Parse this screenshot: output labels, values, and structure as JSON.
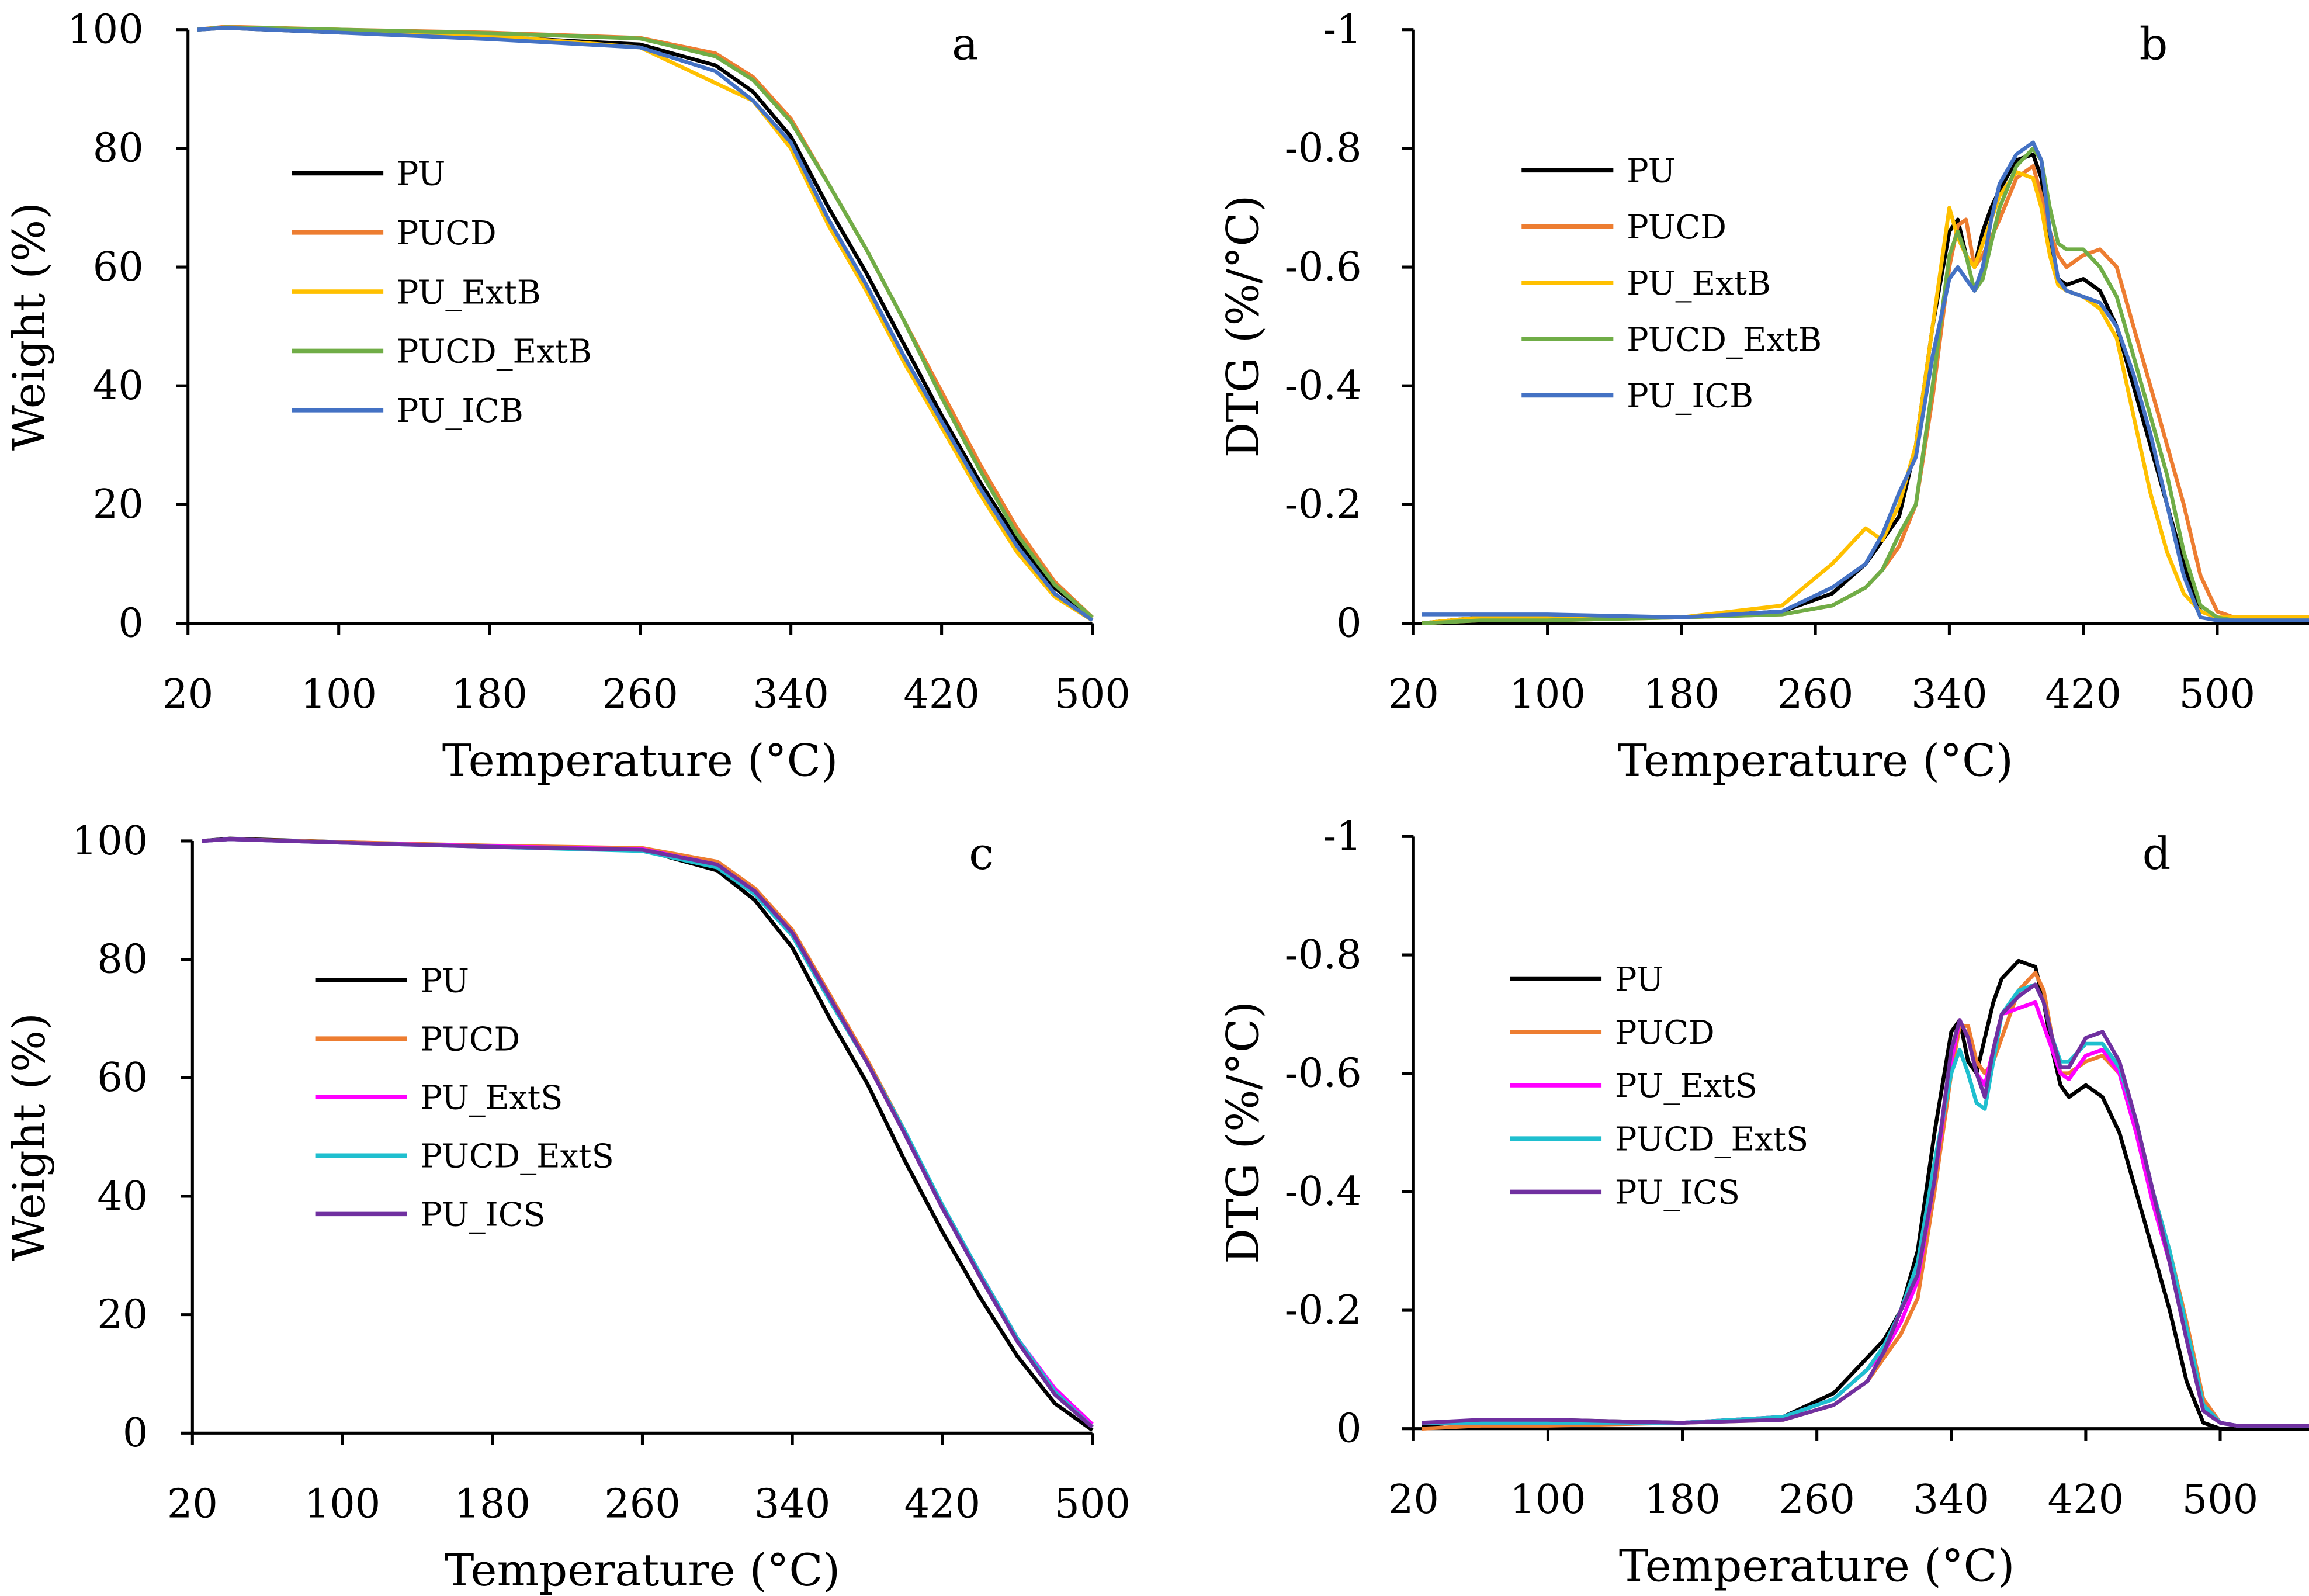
{
  "chart_data": [
    {
      "panel": "a",
      "type": "line",
      "xlabel": "Temperature (°C)",
      "ylabel": "Weight (%)",
      "xlim": [
        20,
        500
      ],
      "ylim": [
        0,
        100
      ],
      "xticks": [
        {
          "v": 20,
          "t": "20"
        },
        {
          "v": 100,
          "t": "100"
        },
        {
          "v": 180,
          "t": "180"
        },
        {
          "v": 260,
          "t": "260"
        },
        {
          "v": 340,
          "t": "340"
        },
        {
          "v": 420,
          "t": "420"
        },
        {
          "v": 500,
          "t": "500"
        }
      ],
      "yticks": [
        {
          "v": 0,
          "t": "0"
        },
        {
          "v": 20,
          "t": "20"
        },
        {
          "v": 40,
          "t": "40"
        },
        {
          "v": 60,
          "t": "60"
        },
        {
          "v": 80,
          "t": "80"
        },
        {
          "v": 100,
          "t": "100"
        }
      ],
      "legend_position": "center-left",
      "grid": false,
      "x": [
        25,
        40,
        100,
        180,
        260,
        300,
        320,
        340,
        360,
        380,
        400,
        420,
        440,
        460,
        480,
        500
      ],
      "series": [
        {
          "name": "PU",
          "color": "#000000",
          "values": [
            100,
            100.3,
            99.5,
            98.8,
            97.5,
            94,
            89.5,
            82,
            70,
            59,
            47,
            35,
            24,
            14,
            6,
            1
          ]
        },
        {
          "name": "PUCD",
          "color": "#ED7D31",
          "values": [
            100,
            100.5,
            100,
            99.5,
            98.6,
            96,
            92,
            85,
            74,
            63,
            51,
            39,
            27,
            16,
            7,
            1
          ]
        },
        {
          "name": "PU_ExtB",
          "color": "#FFC000",
          "values": [
            100,
            100.4,
            100,
            99,
            97,
            91,
            88,
            80,
            67,
            56,
            44,
            33,
            22,
            12,
            4.5,
            0.5
          ]
        },
        {
          "name": "PUCD_ExtB",
          "color": "#70AD47",
          "values": [
            100,
            100.4,
            100,
            99.4,
            98.5,
            95.5,
            91.5,
            84.5,
            74,
            63,
            51,
            38,
            26,
            15,
            6.5,
            1
          ]
        },
        {
          "name": "PU_ICB",
          "color": "#4472C4",
          "values": [
            100,
            100.3,
            99.5,
            98.4,
            97,
            93,
            88,
            81,
            68,
            57,
            45,
            34,
            23,
            13,
            5,
            0.5
          ]
        }
      ]
    },
    {
      "panel": "b",
      "type": "line",
      "xlabel": "Temperature (°C)",
      "ylabel": "DTG (%/°C)",
      "xlim": [
        20,
        555
      ],
      "ylim": [
        0,
        -1
      ],
      "xticks": [
        {
          "v": 20,
          "t": "20"
        },
        {
          "v": 100,
          "t": "100"
        },
        {
          "v": 180,
          "t": "180"
        },
        {
          "v": 260,
          "t": "260"
        },
        {
          "v": 340,
          "t": "340"
        },
        {
          "v": 420,
          "t": "420"
        },
        {
          "v": 500,
          "t": "500"
        }
      ],
      "yticks": [
        {
          "v": 0,
          "t": "0"
        },
        {
          "v": -0.2,
          "t": "-0.2"
        },
        {
          "v": -0.4,
          "t": "-0.4"
        },
        {
          "v": -0.6,
          "t": "-0.6"
        },
        {
          "v": -0.8,
          "t": "-0.8"
        },
        {
          "v": -1,
          "t": "-1"
        }
      ],
      "legend_position": "top-left",
      "grid": false,
      "x": [
        25,
        60,
        100,
        180,
        240,
        270,
        290,
        300,
        310,
        320,
        330,
        340,
        345,
        350,
        355,
        360,
        365,
        370,
        380,
        390,
        395,
        400,
        405,
        410,
        420,
        430,
        440,
        450,
        460,
        470,
        480,
        490,
        500,
        510,
        555
      ],
      "series": [
        {
          "name": "PU",
          "color": "#000000",
          "values": [
            0,
            -0.01,
            -0.01,
            -0.01,
            -0.02,
            -0.05,
            -0.1,
            -0.14,
            -0.18,
            -0.3,
            -0.5,
            -0.66,
            -0.68,
            -0.62,
            -0.6,
            -0.66,
            -0.7,
            -0.73,
            -0.78,
            -0.79,
            -0.75,
            -0.65,
            -0.58,
            -0.57,
            -0.58,
            -0.56,
            -0.5,
            -0.4,
            -0.3,
            -0.2,
            -0.1,
            -0.02,
            -0.01,
            0,
            0
          ]
        },
        {
          "name": "PUCD",
          "color": "#ED7D31",
          "values": [
            0,
            -0.005,
            -0.005,
            -0.01,
            -0.015,
            -0.03,
            -0.06,
            -0.09,
            -0.13,
            -0.2,
            -0.38,
            -0.6,
            -0.67,
            -0.68,
            -0.6,
            -0.62,
            -0.65,
            -0.68,
            -0.75,
            -0.77,
            -0.72,
            -0.66,
            -0.62,
            -0.6,
            -0.62,
            -0.63,
            -0.6,
            -0.5,
            -0.4,
            -0.3,
            -0.2,
            -0.08,
            -0.02,
            -0.01,
            -0.01
          ]
        },
        {
          "name": "PU_ExtB",
          "color": "#FFC000",
          "values": [
            0,
            -0.01,
            -0.01,
            -0.01,
            -0.03,
            -0.1,
            -0.16,
            -0.14,
            -0.2,
            -0.3,
            -0.5,
            -0.7,
            -0.65,
            -0.62,
            -0.6,
            -0.64,
            -0.68,
            -0.72,
            -0.76,
            -0.75,
            -0.7,
            -0.62,
            -0.57,
            -0.56,
            -0.55,
            -0.53,
            -0.48,
            -0.35,
            -0.22,
            -0.12,
            -0.05,
            -0.02,
            -0.01,
            -0.01,
            -0.01
          ]
        },
        {
          "name": "PUCD_ExtB",
          "color": "#70AD47",
          "values": [
            0,
            -0.005,
            -0.005,
            -0.01,
            -0.015,
            -0.03,
            -0.06,
            -0.09,
            -0.15,
            -0.2,
            -0.4,
            -0.62,
            -0.66,
            -0.62,
            -0.56,
            -0.58,
            -0.64,
            -0.7,
            -0.77,
            -0.8,
            -0.78,
            -0.7,
            -0.64,
            -0.63,
            -0.63,
            -0.6,
            -0.55,
            -0.45,
            -0.35,
            -0.25,
            -0.12,
            -0.03,
            -0.01,
            -0.005,
            -0.005
          ]
        },
        {
          "name": "PU_ICB",
          "color": "#4472C4",
          "values": [
            -0.015,
            -0.015,
            -0.015,
            -0.01,
            -0.02,
            -0.06,
            -0.1,
            -0.15,
            -0.22,
            -0.28,
            -0.45,
            -0.58,
            -0.6,
            -0.58,
            -0.56,
            -0.6,
            -0.68,
            -0.74,
            -0.79,
            -0.81,
            -0.78,
            -0.66,
            -0.58,
            -0.56,
            -0.55,
            -0.54,
            -0.5,
            -0.42,
            -0.32,
            -0.2,
            -0.08,
            -0.01,
            -0.005,
            -0.005,
            -0.005
          ]
        }
      ]
    },
    {
      "panel": "c",
      "type": "line",
      "xlabel": "Temperature (°C)",
      "ylabel": "Weight (%)",
      "xlim": [
        20,
        500
      ],
      "ylim": [
        0,
        100
      ],
      "xticks": [
        {
          "v": 20,
          "t": "20"
        },
        {
          "v": 100,
          "t": "100"
        },
        {
          "v": 180,
          "t": "180"
        },
        {
          "v": 260,
          "t": "260"
        },
        {
          "v": 340,
          "t": "340"
        },
        {
          "v": 420,
          "t": "420"
        },
        {
          "v": 500,
          "t": "500"
        }
      ],
      "yticks": [
        {
          "v": 0,
          "t": "0"
        },
        {
          "v": 20,
          "t": "20"
        },
        {
          "v": 40,
          "t": "40"
        },
        {
          "v": 60,
          "t": "60"
        },
        {
          "v": 80,
          "t": "80"
        },
        {
          "v": 100,
          "t": "100"
        }
      ],
      "legend_position": "center-left",
      "grid": false,
      "x": [
        25,
        40,
        100,
        180,
        260,
        300,
        320,
        340,
        360,
        380,
        400,
        420,
        440,
        460,
        480,
        500
      ],
      "series": [
        {
          "name": "PU",
          "color": "#000000",
          "values": [
            100,
            100.4,
            99.8,
            99,
            98.5,
            95,
            90,
            82,
            70,
            59,
            46,
            34,
            23,
            13,
            5,
            0.5
          ]
        },
        {
          "name": "PUCD",
          "color": "#ED7D31",
          "values": [
            100,
            100.3,
            99.8,
            99.2,
            98.8,
            96.5,
            92,
            85,
            74,
            63,
            51,
            38,
            27,
            16,
            7,
            1
          ]
        },
        {
          "name": "PU_ExtS",
          "color": "#FF00FF",
          "values": [
            100,
            100.3,
            99.7,
            99.1,
            98.6,
            96,
            91.5,
            84.5,
            73.5,
            62.5,
            50.5,
            38,
            27,
            16,
            7.5,
            1.5
          ]
        },
        {
          "name": "PUCD_ExtS",
          "color": "#1FBFCF",
          "values": [
            100,
            100.3,
            99.7,
            99,
            98.3,
            95.5,
            91,
            84,
            73,
            62.5,
            51,
            38.5,
            27,
            16,
            7,
            1
          ]
        },
        {
          "name": "PU_ICS",
          "color": "#7030A0",
          "values": [
            100,
            100.3,
            99.7,
            99,
            98.5,
            96,
            91.5,
            84.5,
            73.5,
            62.5,
            50.5,
            38,
            26.5,
            15.5,
            6.5,
            1
          ]
        }
      ]
    },
    {
      "panel": "d",
      "type": "line",
      "xlabel": "Temperature (°C)",
      "ylabel": "DTG (%/°C)",
      "xlim": [
        20,
        555
      ],
      "ylim": [
        0,
        -1
      ],
      "xticks": [
        {
          "v": 20,
          "t": "20"
        },
        {
          "v": 100,
          "t": "100"
        },
        {
          "v": 180,
          "t": "180"
        },
        {
          "v": 260,
          "t": "260"
        },
        {
          "v": 340,
          "t": "340"
        },
        {
          "v": 420,
          "t": "420"
        },
        {
          "v": 500,
          "t": "500"
        }
      ],
      "yticks": [
        {
          "v": 0,
          "t": "0"
        },
        {
          "v": -0.2,
          "t": "-0.2"
        },
        {
          "v": -0.4,
          "t": "-0.4"
        },
        {
          "v": -0.6,
          "t": "-0.6"
        },
        {
          "v": -0.8,
          "t": "-0.8"
        },
        {
          "v": -1,
          "t": "-1"
        }
      ],
      "legend_position": "top-left",
      "grid": false,
      "x": [
        25,
        60,
        100,
        180,
        240,
        270,
        290,
        300,
        310,
        320,
        330,
        340,
        345,
        350,
        355,
        360,
        365,
        370,
        380,
        390,
        395,
        400,
        405,
        410,
        420,
        430,
        440,
        450,
        460,
        470,
        480,
        490,
        500,
        510,
        555
      ],
      "series": [
        {
          "name": "PU",
          "color": "#000000",
          "values": [
            -0.005,
            -0.015,
            -0.015,
            -0.01,
            -0.02,
            -0.06,
            -0.12,
            -0.15,
            -0.2,
            -0.3,
            -0.5,
            -0.67,
            -0.69,
            -0.62,
            -0.6,
            -0.66,
            -0.72,
            -0.76,
            -0.79,
            -0.78,
            -0.72,
            -0.64,
            -0.58,
            -0.56,
            -0.58,
            -0.56,
            -0.5,
            -0.4,
            -0.3,
            -0.2,
            -0.08,
            -0.01,
            0,
            0,
            0
          ]
        },
        {
          "name": "PUCD",
          "color": "#ED7D31",
          "values": [
            0,
            -0.005,
            -0.005,
            -0.01,
            -0.015,
            -0.04,
            -0.08,
            -0.12,
            -0.16,
            -0.22,
            -0.4,
            -0.6,
            -0.68,
            -0.68,
            -0.62,
            -0.6,
            -0.62,
            -0.66,
            -0.74,
            -0.77,
            -0.74,
            -0.66,
            -0.6,
            -0.6,
            -0.62,
            -0.63,
            -0.6,
            -0.52,
            -0.4,
            -0.3,
            -0.18,
            -0.05,
            -0.01,
            -0.005,
            -0.005
          ]
        },
        {
          "name": "PU_ExtS",
          "color": "#FF00FF",
          "values": [
            -0.01,
            -0.01,
            -0.01,
            -0.01,
            -0.02,
            -0.05,
            -0.1,
            -0.13,
            -0.18,
            -0.25,
            -0.42,
            -0.62,
            -0.69,
            -0.66,
            -0.6,
            -0.58,
            -0.64,
            -0.7,
            -0.71,
            -0.72,
            -0.68,
            -0.64,
            -0.6,
            -0.59,
            -0.63,
            -0.64,
            -0.6,
            -0.5,
            -0.38,
            -0.28,
            -0.16,
            -0.04,
            -0.01,
            -0.005,
            -0.005
          ]
        },
        {
          "name": "PUCD_ExtS",
          "color": "#1FBFCF",
          "values": [
            -0.01,
            -0.01,
            -0.01,
            -0.01,
            -0.02,
            -0.05,
            -0.1,
            -0.14,
            -0.2,
            -0.28,
            -0.45,
            -0.6,
            -0.64,
            -0.6,
            -0.55,
            -0.54,
            -0.62,
            -0.7,
            -0.74,
            -0.75,
            -0.72,
            -0.66,
            -0.62,
            -0.62,
            -0.65,
            -0.65,
            -0.61,
            -0.52,
            -0.4,
            -0.3,
            -0.17,
            -0.04,
            -0.01,
            -0.005,
            -0.005
          ]
        },
        {
          "name": "PU_ICS",
          "color": "#7030A0",
          "values": [
            -0.01,
            -0.015,
            -0.015,
            -0.01,
            -0.015,
            -0.04,
            -0.08,
            -0.13,
            -0.2,
            -0.26,
            -0.42,
            -0.64,
            -0.69,
            -0.66,
            -0.6,
            -0.56,
            -0.64,
            -0.7,
            -0.73,
            -0.75,
            -0.72,
            -0.66,
            -0.61,
            -0.61,
            -0.66,
            -0.67,
            -0.62,
            -0.52,
            -0.4,
            -0.28,
            -0.15,
            -0.03,
            -0.01,
            -0.005,
            -0.005
          ]
        }
      ]
    }
  ]
}
